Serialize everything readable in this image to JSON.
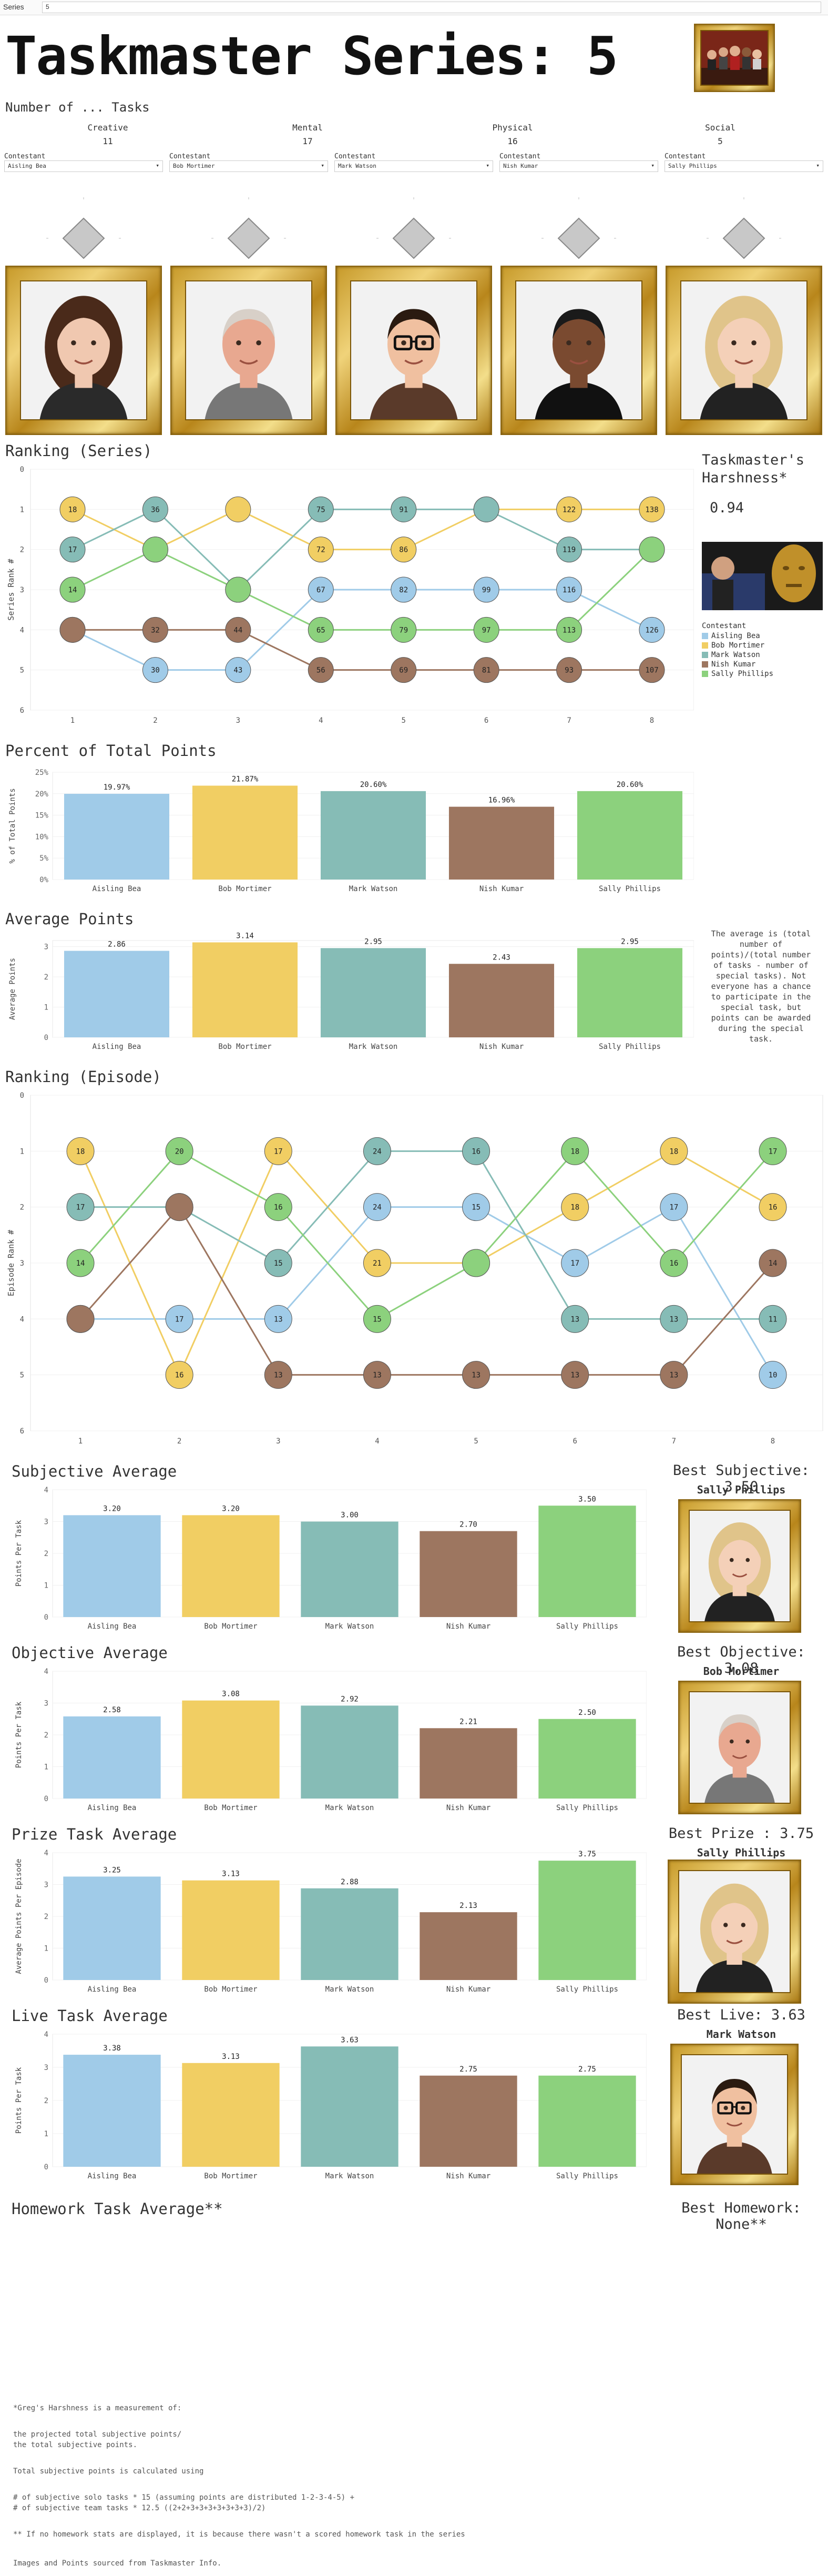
{
  "topbar": {
    "label": "Series",
    "value": "5"
  },
  "title": "Taskmaster Series: 5",
  "number_of_tasks": {
    "heading": "Number of ... Tasks",
    "items": [
      {
        "label": "Creative",
        "value": "11"
      },
      {
        "label": "Mental",
        "value": "17"
      },
      {
        "label": "Physical",
        "value": "16"
      },
      {
        "label": "Social",
        "value": "5"
      }
    ]
  },
  "contestants": [
    {
      "label": "Contestant",
      "value": "Aisling Bea",
      "color": "#A0CBE8"
    },
    {
      "label": "Contestant",
      "value": "Bob Mortimer",
      "color": "#F1CE63"
    },
    {
      "label": "Contestant",
      "value": "Mark Watson",
      "color": "#86BCB6"
    },
    {
      "label": "Contestant",
      "value": "Nish Kumar",
      "color": "#9D7660"
    },
    {
      "label": "Contestant",
      "value": "Sally Phillips",
      "color": "#8CD17D"
    }
  ],
  "ranking_series": {
    "heading": "Ranking (Series)",
    "ylabel": "Series Rank #",
    "ylim": [
      0,
      6
    ],
    "xlim": [
      1,
      8
    ]
  },
  "harshness": {
    "heading": "Taskmaster's Harshness*",
    "value": "0.94"
  },
  "legend": {
    "title": "Contestant",
    "items": [
      "Aisling Bea",
      "Bob Mortimer",
      "Mark Watson",
      "Nish Kumar",
      "Sally Phillips"
    ]
  },
  "pct_points": {
    "heading": "Percent of Total Points",
    "ylabel": "% of Total Points"
  },
  "avg_points": {
    "heading": "Average Points",
    "ylabel": "Average Points",
    "note": "The average is (total number of points)/(total number of tasks - number of special tasks). Not everyone has a chance to participate in the special task, but points can be awarded during the special task."
  },
  "ranking_episode": {
    "heading": "Ranking (Episode)",
    "ylabel": "Episode Rank #",
    "ylim": [
      0,
      6
    ],
    "xlim": [
      1,
      8
    ]
  },
  "subjective": {
    "heading": "Subjective Average",
    "ylabel": "Points Per Task",
    "best_label": "Best Subjective: 3.50",
    "best_name": "Sally Phillips"
  },
  "objective": {
    "heading": "Objective Average",
    "ylabel": "Points Per Task",
    "best_label": "Best Objective: 3.08",
    "best_name": "Bob Mortimer"
  },
  "prize": {
    "heading": "Prize Task Average",
    "ylabel": "Average Points Per Episode",
    "best_label": "Best Prize : 3.75",
    "best_name": "Sally Phillips"
  },
  "live": {
    "heading": "Live Task Average",
    "ylabel": "Points Per Task",
    "best_label": "Best Live: 3.63",
    "best_name": "Mark Watson"
  },
  "homework": {
    "heading": "Homework Task Average**",
    "best_label": "Best Homework: None**"
  },
  "footnotes": [
    "*Greg's Harshness is a measurement of:",
    "the projected total subjective points/",
    "the total subjective points.",
    "Total subjective points is calculated using",
    "# of subjective solo tasks * 15 (assuming points are distributed 1-2-3-4-5) +",
    "# of subjective team tasks * 12.5 ((2+2+3+3+3+3+3+3+3)/2)",
    "** If no homework stats are displayed, it is because there wasn't a scored homework task in the series",
    "Images and Points sourced from Taskmaster Info."
  ],
  "chart_data": [
    {
      "type": "line",
      "title": "Ranking (Series)",
      "ylabel": "Series Rank #",
      "x": [
        1,
        2,
        3,
        4,
        5,
        6,
        7,
        8
      ],
      "ylim": [
        0,
        6
      ],
      "series": [
        {
          "name": "Aisling Bea",
          "ranks": [
            4,
            5,
            5,
            3,
            3,
            3,
            3,
            4
          ],
          "labels": [
            "",
            "30",
            "43",
            "67",
            "82",
            "99",
            "116",
            "126"
          ]
        },
        {
          "name": "Bob Mortimer",
          "ranks": [
            1,
            2,
            1,
            2,
            2,
            1,
            1,
            1
          ],
          "labels": [
            "18",
            "",
            "",
            "72",
            "86",
            "",
            "122",
            "138"
          ]
        },
        {
          "name": "Mark Watson",
          "ranks": [
            2,
            1,
            3,
            1,
            1,
            1,
            2,
            2
          ],
          "labels": [
            "17",
            "36",
            "50",
            "75",
            "91",
            "",
            "119",
            ""
          ]
        },
        {
          "name": "Nish Kumar",
          "ranks": [
            4,
            4,
            4,
            5,
            5,
            5,
            5,
            5
          ],
          "labels": [
            "",
            "32",
            "44",
            "56",
            "69",
            "81",
            "93",
            "107"
          ]
        },
        {
          "name": "Sally Phillips",
          "ranks": [
            3,
            2,
            3,
            4,
            4,
            4,
            4,
            2
          ],
          "labels": [
            "14",
            "",
            "",
            "65",
            "79",
            "97",
            "113",
            ""
          ]
        }
      ]
    },
    {
      "type": "bar",
      "title": "Percent of Total Points",
      "ylabel": "% of Total Points",
      "categories": [
        "Aisling Bea",
        "Bob Mortimer",
        "Mark Watson",
        "Nish Kumar",
        "Sally Phillips"
      ],
      "values": [
        19.97,
        21.87,
        20.6,
        16.96,
        20.6
      ],
      "labels": [
        "19.97%",
        "21.87%",
        "20.60%",
        "16.96%",
        "20.60%"
      ],
      "ylim": [
        0,
        25
      ],
      "ticks": [
        "0%",
        "5%",
        "10%",
        "15%",
        "20%",
        "25%"
      ]
    },
    {
      "type": "bar",
      "title": "Average Points",
      "ylabel": "Average Points",
      "categories": [
        "Aisling Bea",
        "Bob Mortimer",
        "Mark Watson",
        "Nish Kumar",
        "Sally Phillips"
      ],
      "values": [
        2.86,
        3.14,
        2.95,
        2.43,
        2.95
      ],
      "labels": [
        "2.86",
        "3.14",
        "2.95",
        "2.43",
        "2.95"
      ],
      "ylim": [
        0,
        3.2
      ],
      "ticks": [
        "0",
        "1",
        "2",
        "3"
      ]
    },
    {
      "type": "line",
      "title": "Ranking (Episode)",
      "ylabel": "Episode Rank #",
      "x": [
        1,
        2,
        3,
        4,
        5,
        6,
        7,
        8
      ],
      "ylim": [
        0,
        6
      ],
      "series": [
        {
          "name": "Aisling Bea",
          "ranks": [
            4,
            4,
            4,
            2,
            2,
            3,
            2,
            5
          ],
          "labels": [
            "",
            "17",
            "13",
            "24",
            "15",
            "17",
            "17",
            "10"
          ]
        },
        {
          "name": "Bob Mortimer",
          "ranks": [
            1,
            5,
            1,
            3,
            3,
            2,
            1,
            2
          ],
          "labels": [
            "18",
            "16",
            "17",
            "21",
            "",
            "18",
            "18",
            "16"
          ]
        },
        {
          "name": "Mark Watson",
          "ranks": [
            2,
            2,
            3,
            1,
            1,
            4,
            4,
            4
          ],
          "labels": [
            "17",
            "",
            "15",
            "24",
            "16",
            "13",
            "13",
            "11"
          ]
        },
        {
          "name": "Nish Kumar",
          "ranks": [
            4,
            2,
            5,
            5,
            5,
            5,
            5,
            3
          ],
          "labels": [
            "",
            "",
            "13",
            "13",
            "13",
            "13",
            "13",
            "14"
          ]
        },
        {
          "name": "Sally Phillips",
          "ranks": [
            3,
            1,
            2,
            4,
            3,
            1,
            3,
            1
          ],
          "labels": [
            "14",
            "20",
            "16",
            "15",
            "",
            "18",
            "16",
            "17"
          ]
        }
      ]
    },
    {
      "type": "bar",
      "title": "Subjective Average",
      "ylabel": "Points Per Task",
      "categories": [
        "Aisling Bea",
        "Bob Mortimer",
        "Mark Watson",
        "Nish Kumar",
        "Sally Phillips"
      ],
      "values": [
        3.2,
        3.2,
        3.0,
        2.7,
        3.5
      ],
      "labels": [
        "3.20",
        "3.20",
        "3.00",
        "2.70",
        "3.50"
      ],
      "ylim": [
        0,
        4
      ],
      "ticks": [
        "0",
        "1",
        "2",
        "3",
        "4"
      ]
    },
    {
      "type": "bar",
      "title": "Objective Average",
      "ylabel": "Points Per Task",
      "categories": [
        "Aisling Bea",
        "Bob Mortimer",
        "Mark Watson",
        "Nish Kumar",
        "Sally Phillips"
      ],
      "values": [
        2.58,
        3.08,
        2.92,
        2.21,
        2.5
      ],
      "labels": [
        "2.58",
        "3.08",
        "2.92",
        "2.21",
        "2.50"
      ],
      "ylim": [
        0,
        4
      ],
      "ticks": [
        "0",
        "1",
        "2",
        "3",
        "4"
      ]
    },
    {
      "type": "bar",
      "title": "Prize Task Average",
      "ylabel": "Average Points Per Episode",
      "categories": [
        "Aisling Bea",
        "Bob Mortimer",
        "Mark Watson",
        "Nish Kumar",
        "Sally Phillips"
      ],
      "values": [
        3.25,
        3.13,
        2.88,
        2.13,
        3.75
      ],
      "labels": [
        "3.25",
        "3.13",
        "2.88",
        "2.13",
        "3.75"
      ],
      "ylim": [
        0,
        4
      ],
      "ticks": [
        "0",
        "1",
        "2",
        "3",
        "4"
      ]
    },
    {
      "type": "bar",
      "title": "Live Task Average",
      "ylabel": "Points Per Task",
      "categories": [
        "Aisling Bea",
        "Bob Mortimer",
        "Mark Watson",
        "Nish Kumar",
        "Sally Phillips"
      ],
      "values": [
        3.38,
        3.13,
        3.63,
        2.75,
        2.75
      ],
      "labels": [
        "3.38",
        "3.13",
        "3.63",
        "2.75",
        "2.75"
      ],
      "ylim": [
        0,
        4
      ],
      "ticks": [
        "0",
        "1",
        "2",
        "3",
        "4"
      ]
    }
  ]
}
